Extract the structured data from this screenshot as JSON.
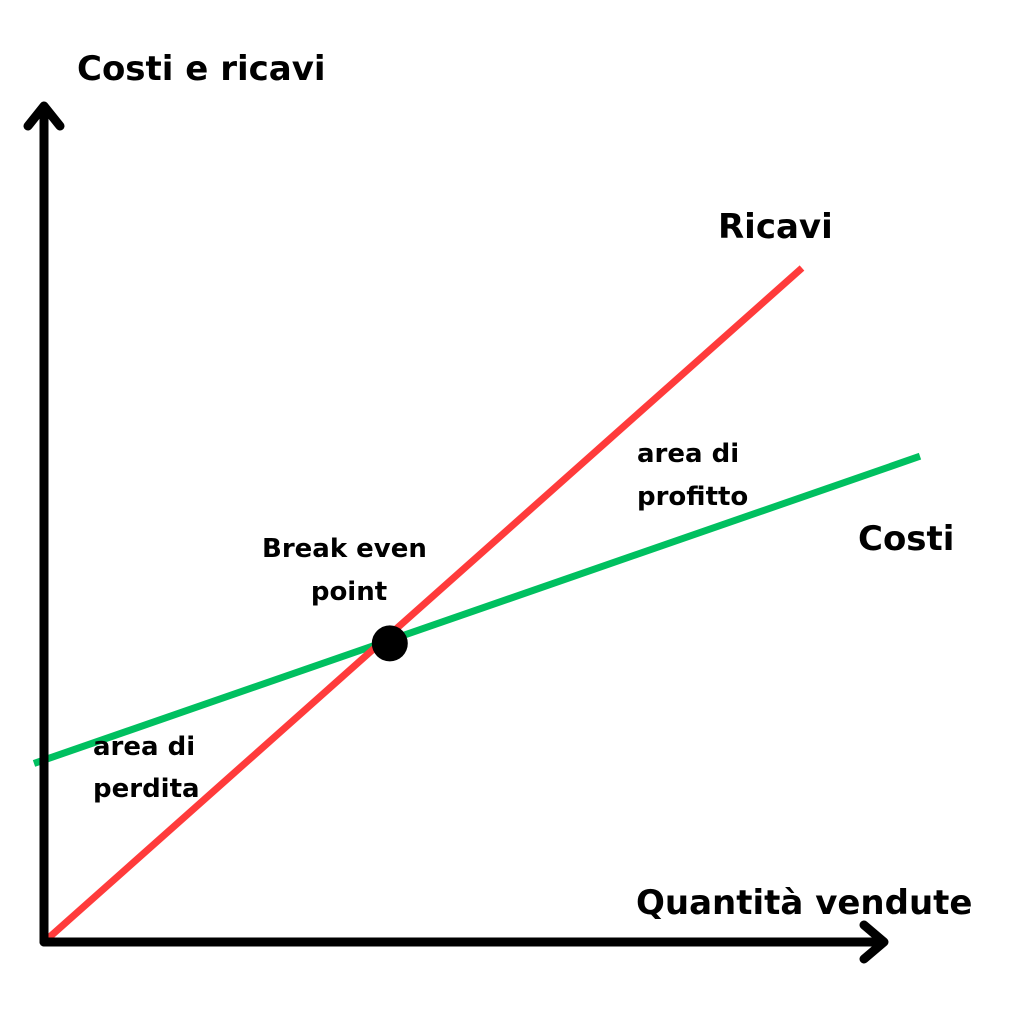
{
  "chart_data": {
    "type": "line",
    "title": "",
    "ylabel": "Costi e ricavi",
    "xlabel": "Quantità vendute",
    "grid": false,
    "legend": "none",
    "axis_ticks": false,
    "series": [
      {
        "name": "Ricavi",
        "color": "#ff3b3b",
        "x": [
          0,
          100
        ],
        "y": [
          0,
          100
        ]
      },
      {
        "name": "Costi",
        "color": "#00c060",
        "x": [
          0,
          100
        ],
        "y": [
          27,
          66
        ]
      }
    ],
    "xlim": [
      0,
      100
    ],
    "ylim": [
      0,
      100
    ],
    "break_even": {
      "label_line1": "Break even",
      "label_line2": "point",
      "x": 44.3,
      "y": 44.3
    },
    "annotations": {
      "profit_line1": "area di",
      "profit_line2": "profitto",
      "loss_line1": "area di",
      "loss_line2": "perdita"
    }
  }
}
